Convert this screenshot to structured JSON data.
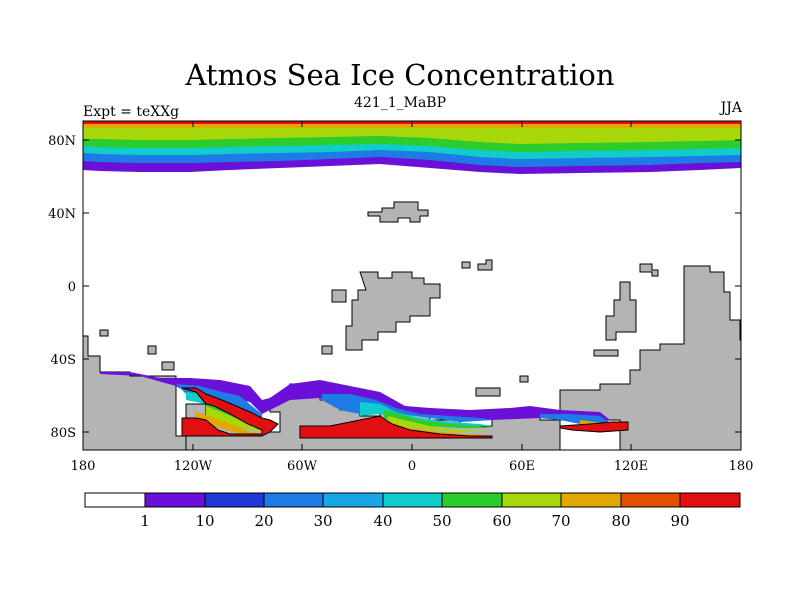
{
  "title": "Atmos Sea Ice Concentration",
  "subtitle": "421_1_MaBP",
  "left_label": "Expt = teXXg",
  "right_label": "JJA",
  "y_ticks": [
    "80N",
    "40N",
    "0",
    "40S",
    "80S"
  ],
  "x_ticks": [
    "180",
    "120W",
    "60W",
    "0",
    "60E",
    "120E",
    "180"
  ],
  "colorbar": {
    "labels": [
      "1",
      "10",
      "20",
      "30",
      "40",
      "50",
      "60",
      "70",
      "80",
      "90"
    ],
    "colors": [
      "#ffffff",
      "#6a10d8",
      "#2038d8",
      "#1e7be6",
      "#18a6e6",
      "#10cccc",
      "#2ccc2c",
      "#a8d80a",
      "#e0a800",
      "#e05000",
      "#e01010"
    ]
  },
  "land_color": "#b4b4b4"
}
